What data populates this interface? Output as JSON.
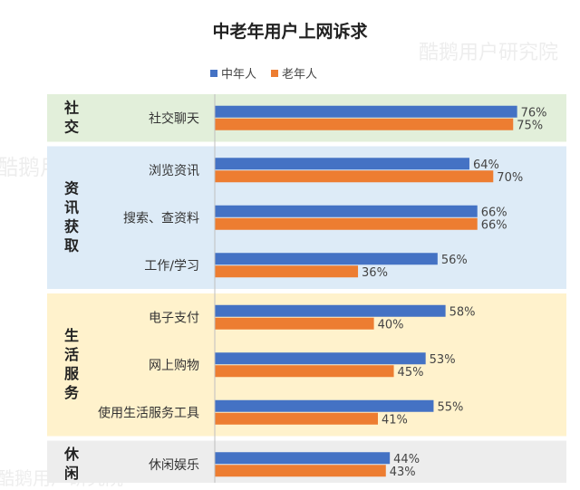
{
  "chart_data": {
    "type": "bar",
    "title": "中老年用户上网诉求",
    "xlim": [
      0,
      100
    ],
    "series": [
      {
        "name": "中年人",
        "color": "#4472c4"
      },
      {
        "name": "老年人",
        "color": "#ed7d31"
      }
    ],
    "groups": [
      {
        "label": "社交",
        "bg": "#e2efda",
        "items": [
          {
            "label": "社交聊天",
            "values": [
              76,
              75
            ],
            "value_labels": [
              "76%",
              "75%"
            ]
          }
        ]
      },
      {
        "label": "资讯获取",
        "bg": "#ddebf7",
        "items": [
          {
            "label": "浏览资讯",
            "values": [
              64,
              70
            ],
            "value_labels": [
              "64%",
              "70%"
            ]
          },
          {
            "label": "搜索、查资料",
            "values": [
              66,
              66
            ],
            "value_labels": [
              "66%",
              "66%"
            ]
          },
          {
            "label": "工作/学习",
            "values": [
              56,
              36
            ],
            "value_labels": [
              "56%",
              "36%"
            ]
          }
        ]
      },
      {
        "label": "生活服务",
        "bg": "#fff2cc",
        "items": [
          {
            "label": "电子支付",
            "values": [
              58,
              40
            ],
            "value_labels": [
              "58%",
              "40%"
            ]
          },
          {
            "label": "网上购物",
            "values": [
              53,
              45
            ],
            "value_labels": [
              "53%",
              "45%"
            ]
          },
          {
            "label": "使用生活服务工具",
            "values": [
              55,
              41
            ],
            "value_labels": [
              "55%",
              "41%"
            ]
          }
        ]
      },
      {
        "label": "休闲",
        "bg": "#ededed",
        "items": [
          {
            "label": "休闲娱乐",
            "values": [
              44,
              43
            ],
            "value_labels": [
              "44%",
              "43%"
            ]
          }
        ]
      }
    ]
  },
  "watermark": "酷鹅用户研究院"
}
